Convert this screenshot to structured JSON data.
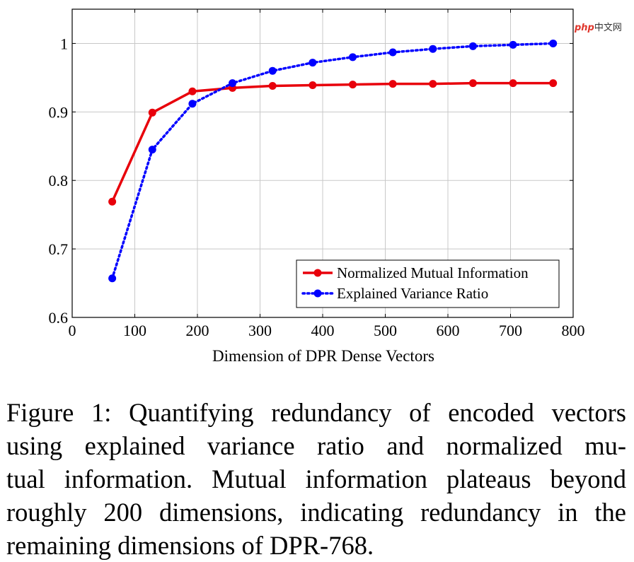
{
  "chart_data": {
    "type": "line",
    "xlabel": "Dimension of DPR Dense Vectors",
    "ylabel": "",
    "xlim": [
      0,
      800
    ],
    "ylim": [
      0.6,
      1.05
    ],
    "xticks": [
      0,
      100,
      200,
      300,
      400,
      500,
      600,
      700,
      800
    ],
    "xtick_labels": [
      "0",
      "100",
      "200",
      "300",
      "400",
      "500",
      "600",
      "700",
      "800"
    ],
    "yticks": [
      0.6,
      0.7,
      0.8,
      0.9,
      1.0
    ],
    "ytick_labels": [
      "0.6",
      "0.7",
      "0.8",
      "0.9",
      "1"
    ],
    "grid": true,
    "legend_position": "bottom-right",
    "x": [
      64,
      128,
      192,
      256,
      320,
      384,
      448,
      512,
      576,
      640,
      704,
      768
    ],
    "series": [
      {
        "name": "Normalized Mutual Information",
        "color": "#e8000b",
        "style": "solid",
        "values": [
          0.769,
          0.899,
          0.93,
          0.935,
          0.938,
          0.939,
          0.94,
          0.941,
          0.941,
          0.942,
          0.942,
          0.942
        ]
      },
      {
        "name": "Explained Variance Ratio",
        "color": "#0000ff",
        "style": "dotted",
        "values": [
          0.657,
          0.845,
          0.912,
          0.942,
          0.96,
          0.972,
          0.98,
          0.987,
          0.992,
          0.996,
          0.998,
          1.0
        ]
      }
    ]
  },
  "watermark": {
    "brand": "php",
    "site": "中文网"
  },
  "caption": {
    "lines": [
      "Figure 1: Quantifying redundancy of encoded vectors",
      "using explained variance ratio and normalized mu-",
      "tual information. Mutual information plateaus beyond",
      "roughly 200 dimensions, indicating redundancy in the",
      "remaining dimensions of DPR-768."
    ]
  }
}
